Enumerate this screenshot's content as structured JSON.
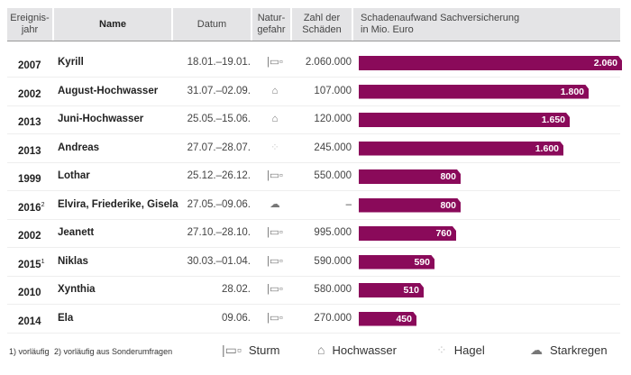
{
  "headers": {
    "year": "Ereignis-\njahr",
    "name": "Name",
    "date": "Datum",
    "hazard": "Natur-\ngefahr",
    "count": "Zahl der\nSchäden",
    "damage": "Schadenaufwand Sachversicherung\nin Mio. Euro"
  },
  "colors": {
    "bar": "#8a0a5a",
    "header_bg": "#e4e4e6"
  },
  "chart_data": {
    "type": "bar",
    "title": "Schadenaufwand Sachversicherung in Mio. Euro",
    "max": 2060,
    "rows": [
      {
        "year": "2007",
        "sup": "",
        "name": "Kyrill",
        "date": "18.01.–19.01.",
        "hazard": "sturm",
        "count": "2.060.000",
        "value": 2060,
        "label": "2.060"
      },
      {
        "year": "2002",
        "sup": "",
        "name": "August-Hochwasser",
        "date": "31.07.–02.09.",
        "hazard": "hochwasser",
        "count": "107.000",
        "value": 1800,
        "label": "1.800"
      },
      {
        "year": "2013",
        "sup": "",
        "name": "Juni-Hochwasser",
        "date": "25.05.–15.06.",
        "hazard": "hochwasser",
        "count": "120.000",
        "value": 1650,
        "label": "1.650"
      },
      {
        "year": "2013",
        "sup": "",
        "name": "Andreas",
        "date": "27.07.–28.07.",
        "hazard": "hagel",
        "count": "245.000",
        "value": 1600,
        "label": "1.600"
      },
      {
        "year": "1999",
        "sup": "",
        "name": "Lothar",
        "date": "25.12.–26.12.",
        "hazard": "sturm",
        "count": "550.000",
        "value": 800,
        "label": "800"
      },
      {
        "year": "2016",
        "sup": "2",
        "name": "Elvira, Friederike, Gisela",
        "date": "27.05.–09.06.",
        "hazard": "starkregen",
        "count": "–",
        "value": 800,
        "label": "800"
      },
      {
        "year": "2002",
        "sup": "",
        "name": "Jeanett",
        "date": "27.10.–28.10.",
        "hazard": "sturm",
        "count": "995.000",
        "value": 760,
        "label": "760"
      },
      {
        "year": "2015",
        "sup": "1",
        "name": "Niklas",
        "date": "30.03.–01.04.",
        "hazard": "sturm",
        "count": "590.000",
        "value": 590,
        "label": "590"
      },
      {
        "year": "2010",
        "sup": "",
        "name": "Xynthia",
        "date": "28.02.",
        "hazard": "sturm",
        "count": "580.000",
        "value": 510,
        "label": "510"
      },
      {
        "year": "2014",
        "sup": "",
        "name": "Ela",
        "date": "09.06.",
        "hazard": "sturm",
        "count": "270.000",
        "value": 450,
        "label": "450"
      }
    ]
  },
  "footnotes": {
    "f1": "1) vorläufig",
    "f2": "2) vorläufig aus Sonderumfragen"
  },
  "legend": {
    "sturm": "Sturm",
    "hochwasser": "Hochwasser",
    "hagel": "Hagel",
    "starkregen": "Starkregen"
  }
}
